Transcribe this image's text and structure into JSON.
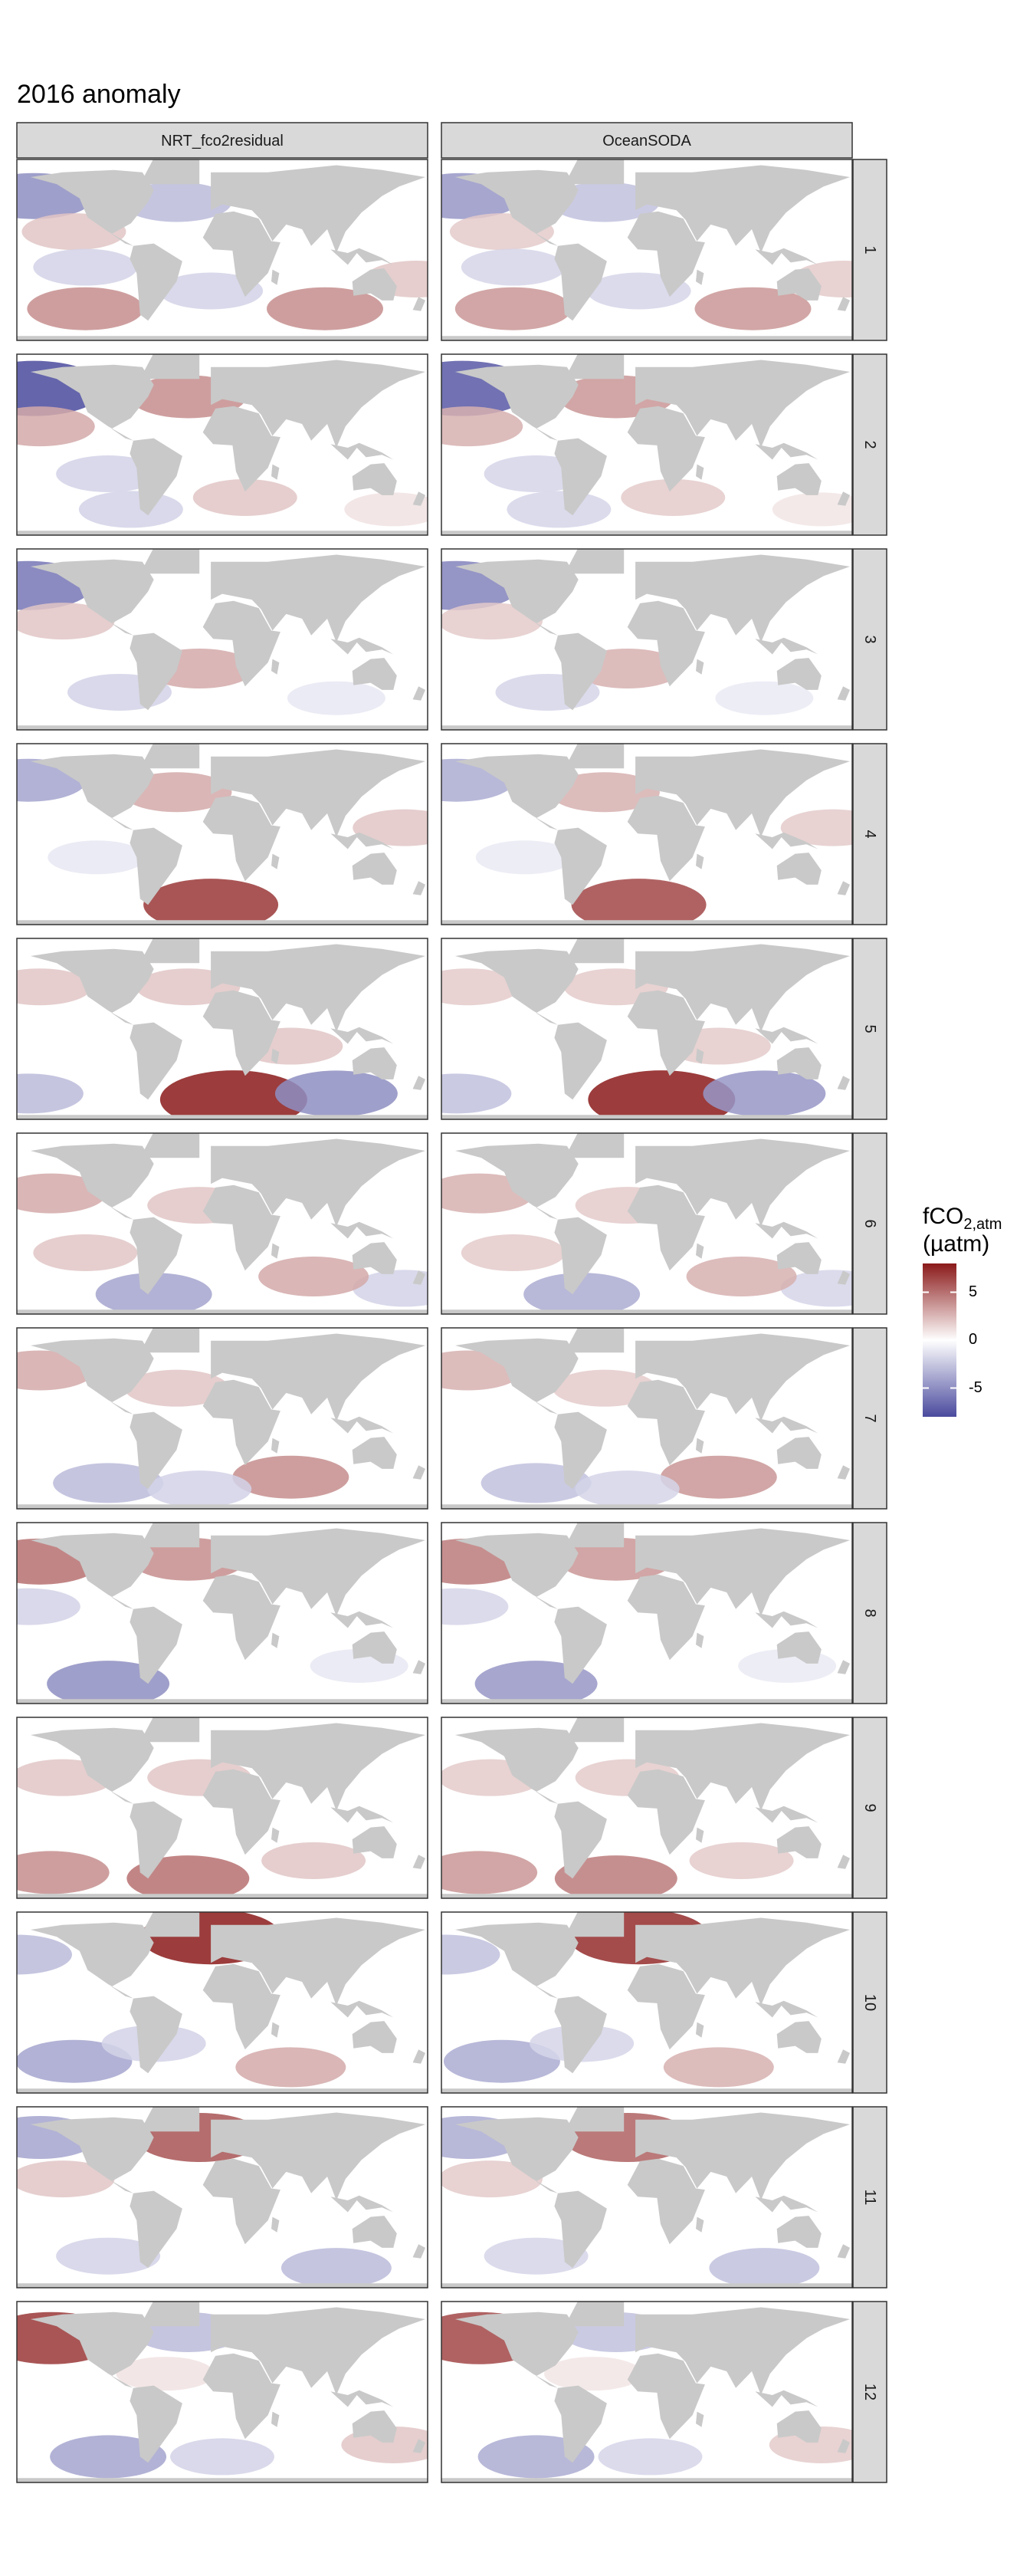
{
  "title": "2016 anomaly",
  "colors": {
    "land": "#c9c9c9",
    "ocean_bg": "#ffffff",
    "strip_bg": "#d9d9d9",
    "panel_border": "#333333",
    "high": "#8b1a1a",
    "mid": "#ffffff",
    "low": "#4a4a9e"
  },
  "chart_data": {
    "type": "heatmap",
    "title": "2016 anomaly",
    "facet_columns": [
      "NRT_fco2residual",
      "OceanSODA"
    ],
    "facet_rows": [
      "1",
      "2",
      "3",
      "4",
      "5",
      "6",
      "7",
      "8",
      "9",
      "10",
      "11",
      "12"
    ],
    "legend": {
      "title_main": "fCO",
      "title_sub": "2,atm",
      "title_unit": "(µatm)",
      "ticks": [
        5,
        0,
        -5
      ],
      "tick_labels": [
        "5",
        "0",
        "-5"
      ],
      "limits": [
        -8,
        8
      ],
      "placement": "right"
    },
    "anomaly_features": [
      [
        {
          "lon": -165,
          "lat": 50,
          "v": -5
        },
        {
          "lon": -40,
          "lat": 45,
          "v": -3
        },
        {
          "lon": -130,
          "lat": 20,
          "v": 2
        },
        {
          "lon": -120,
          "lat": -10,
          "v": -2
        },
        {
          "lon": -10,
          "lat": -30,
          "v": -2
        },
        {
          "lon": 90,
          "lat": -45,
          "v": 4
        },
        {
          "lon": -120,
          "lat": -45,
          "v": 4
        },
        {
          "lon": 170,
          "lat": -20,
          "v": 2
        }
      ],
      [
        {
          "lon": -165,
          "lat": 52,
          "v": -8
        },
        {
          "lon": -30,
          "lat": 45,
          "v": 4
        },
        {
          "lon": -160,
          "lat": 20,
          "v": 3
        },
        {
          "lon": -100,
          "lat": -20,
          "v": -2
        },
        {
          "lon": 20,
          "lat": -40,
          "v": 2
        },
        {
          "lon": -80,
          "lat": -50,
          "v": -2
        },
        {
          "lon": 150,
          "lat": -50,
          "v": 1
        }
      ],
      [
        {
          "lon": -170,
          "lat": 50,
          "v": -6
        },
        {
          "lon": -20,
          "lat": -20,
          "v": 3
        },
        {
          "lon": -140,
          "lat": 20,
          "v": 2
        },
        {
          "lon": 100,
          "lat": -45,
          "v": -1
        },
        {
          "lon": -90,
          "lat": -40,
          "v": -2
        }
      ],
      [
        {
          "lon": -170,
          "lat": 50,
          "v": -4
        },
        {
          "lon": -40,
          "lat": 40,
          "v": 3
        },
        {
          "lon": -10,
          "lat": -55,
          "v": 7
        },
        {
          "lon": 160,
          "lat": 10,
          "v": 2
        },
        {
          "lon": -110,
          "lat": -15,
          "v": -1
        }
      ],
      [
        {
          "lon": 10,
          "lat": -55,
          "v": 9
        },
        {
          "lon": 100,
          "lat": -50,
          "v": -5
        },
        {
          "lon": -170,
          "lat": -50,
          "v": -3
        },
        {
          "lon": -160,
          "lat": 40,
          "v": 2
        },
        {
          "lon": -30,
          "lat": 40,
          "v": 2
        },
        {
          "lon": 60,
          "lat": -10,
          "v": 2
        }
      ],
      [
        {
          "lon": -150,
          "lat": 30,
          "v": 3
        },
        {
          "lon": -60,
          "lat": -55,
          "v": -4
        },
        {
          "lon": 160,
          "lat": -50,
          "v": -2
        },
        {
          "lon": 80,
          "lat": -40,
          "v": 3
        },
        {
          "lon": -20,
          "lat": 20,
          "v": 2
        },
        {
          "lon": -120,
          "lat": -20,
          "v": 2
        }
      ],
      [
        {
          "lon": -160,
          "lat": 45,
          "v": 3
        },
        {
          "lon": 60,
          "lat": -45,
          "v": 4
        },
        {
          "lon": -100,
          "lat": -50,
          "v": -3
        },
        {
          "lon": -20,
          "lat": -55,
          "v": -2
        },
        {
          "lon": -40,
          "lat": 30,
          "v": 2
        }
      ],
      [
        {
          "lon": -160,
          "lat": 48,
          "v": 5
        },
        {
          "lon": -30,
          "lat": 50,
          "v": 4
        },
        {
          "lon": -100,
          "lat": -55,
          "v": -5
        },
        {
          "lon": -170,
          "lat": 10,
          "v": -2
        },
        {
          "lon": 120,
          "lat": -40,
          "v": -1
        }
      ],
      [
        {
          "lon": -30,
          "lat": -55,
          "v": 5
        },
        {
          "lon": -150,
          "lat": -50,
          "v": 4
        },
        {
          "lon": -140,
          "lat": 30,
          "v": 2
        },
        {
          "lon": 80,
          "lat": -40,
          "v": 2
        },
        {
          "lon": -20,
          "lat": 30,
          "v": 2
        }
      ],
      [
        {
          "lon": -10,
          "lat": 60,
          "v": 8
        },
        {
          "lon": -130,
          "lat": -45,
          "v": -4
        },
        {
          "lon": -180,
          "lat": 45,
          "v": -3
        },
        {
          "lon": 60,
          "lat": -50,
          "v": 3
        },
        {
          "lon": -60,
          "lat": -30,
          "v": -2
        }
      ],
      [
        {
          "lon": -20,
          "lat": 55,
          "v": 6
        },
        {
          "lon": -160,
          "lat": 55,
          "v": -4
        },
        {
          "lon": 100,
          "lat": -55,
          "v": -3
        },
        {
          "lon": -100,
          "lat": -45,
          "v": -2
        },
        {
          "lon": -140,
          "lat": 20,
          "v": 2
        }
      ],
      [
        {
          "lon": -150,
          "lat": 50,
          "v": 7
        },
        {
          "lon": -30,
          "lat": 55,
          "v": -3
        },
        {
          "lon": -100,
          "lat": -50,
          "v": -4
        },
        {
          "lon": 0,
          "lat": -50,
          "v": -2
        },
        {
          "lon": 150,
          "lat": -40,
          "v": 2
        },
        {
          "lon": -50,
          "lat": 20,
          "v": 1
        }
      ]
    ]
  }
}
